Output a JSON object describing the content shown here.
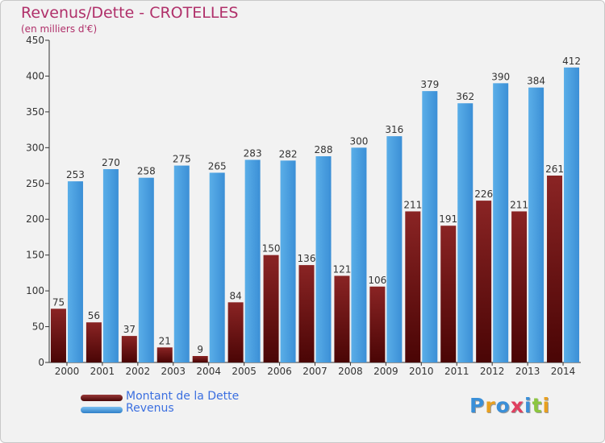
{
  "header": {
    "title": "Revenus/Dette - CROTELLES",
    "subtitle": "(en milliers d'€)"
  },
  "chart_data": {
    "type": "bar",
    "title": "Revenus/Dette - CROTELLES",
    "subtitle": "(en milliers d'€)",
    "categories": [
      "2000",
      "2001",
      "2002",
      "2003",
      "2004",
      "2005",
      "2006",
      "2007",
      "2008",
      "2009",
      "2010",
      "2011",
      "2012",
      "2013",
      "2014"
    ],
    "series": [
      {
        "name": "Montant de la Dette",
        "color": "#7a1a1a",
        "values": [
          75,
          56,
          37,
          21,
          9,
          84,
          150,
          136,
          121,
          106,
          211,
          191,
          226,
          211,
          261
        ]
      },
      {
        "name": "Revenus",
        "color": "#4a9fe0",
        "values": [
          253,
          270,
          258,
          275,
          265,
          283,
          282,
          288,
          300,
          316,
          379,
          362,
          390,
          384,
          412
        ]
      }
    ],
    "ylim": [
      0,
      450
    ],
    "yticks": [
      0,
      50,
      100,
      150,
      200,
      250,
      300,
      350,
      400,
      450
    ],
    "grid": false,
    "legend_position": "bottom-left"
  },
  "legend": {
    "items": [
      {
        "label": "Montant de la Dette",
        "color": "#7a1a1a"
      },
      {
        "label": "Revenus",
        "color": "#4a9fe0"
      }
    ]
  },
  "logo": {
    "text": "Proxiti",
    "letters": [
      {
        "ch": "P",
        "color": "#3a8fd8"
      },
      {
        "ch": "r",
        "color": "#e8a020"
      },
      {
        "ch": "o",
        "color": "#3a8fd8"
      },
      {
        "ch": "x",
        "color": "#e04060"
      },
      {
        "ch": "i",
        "color": "#3a8fd8"
      },
      {
        "ch": "t",
        "color": "#8cc63f"
      },
      {
        "ch": "i",
        "color": "#e8a020"
      }
    ]
  }
}
